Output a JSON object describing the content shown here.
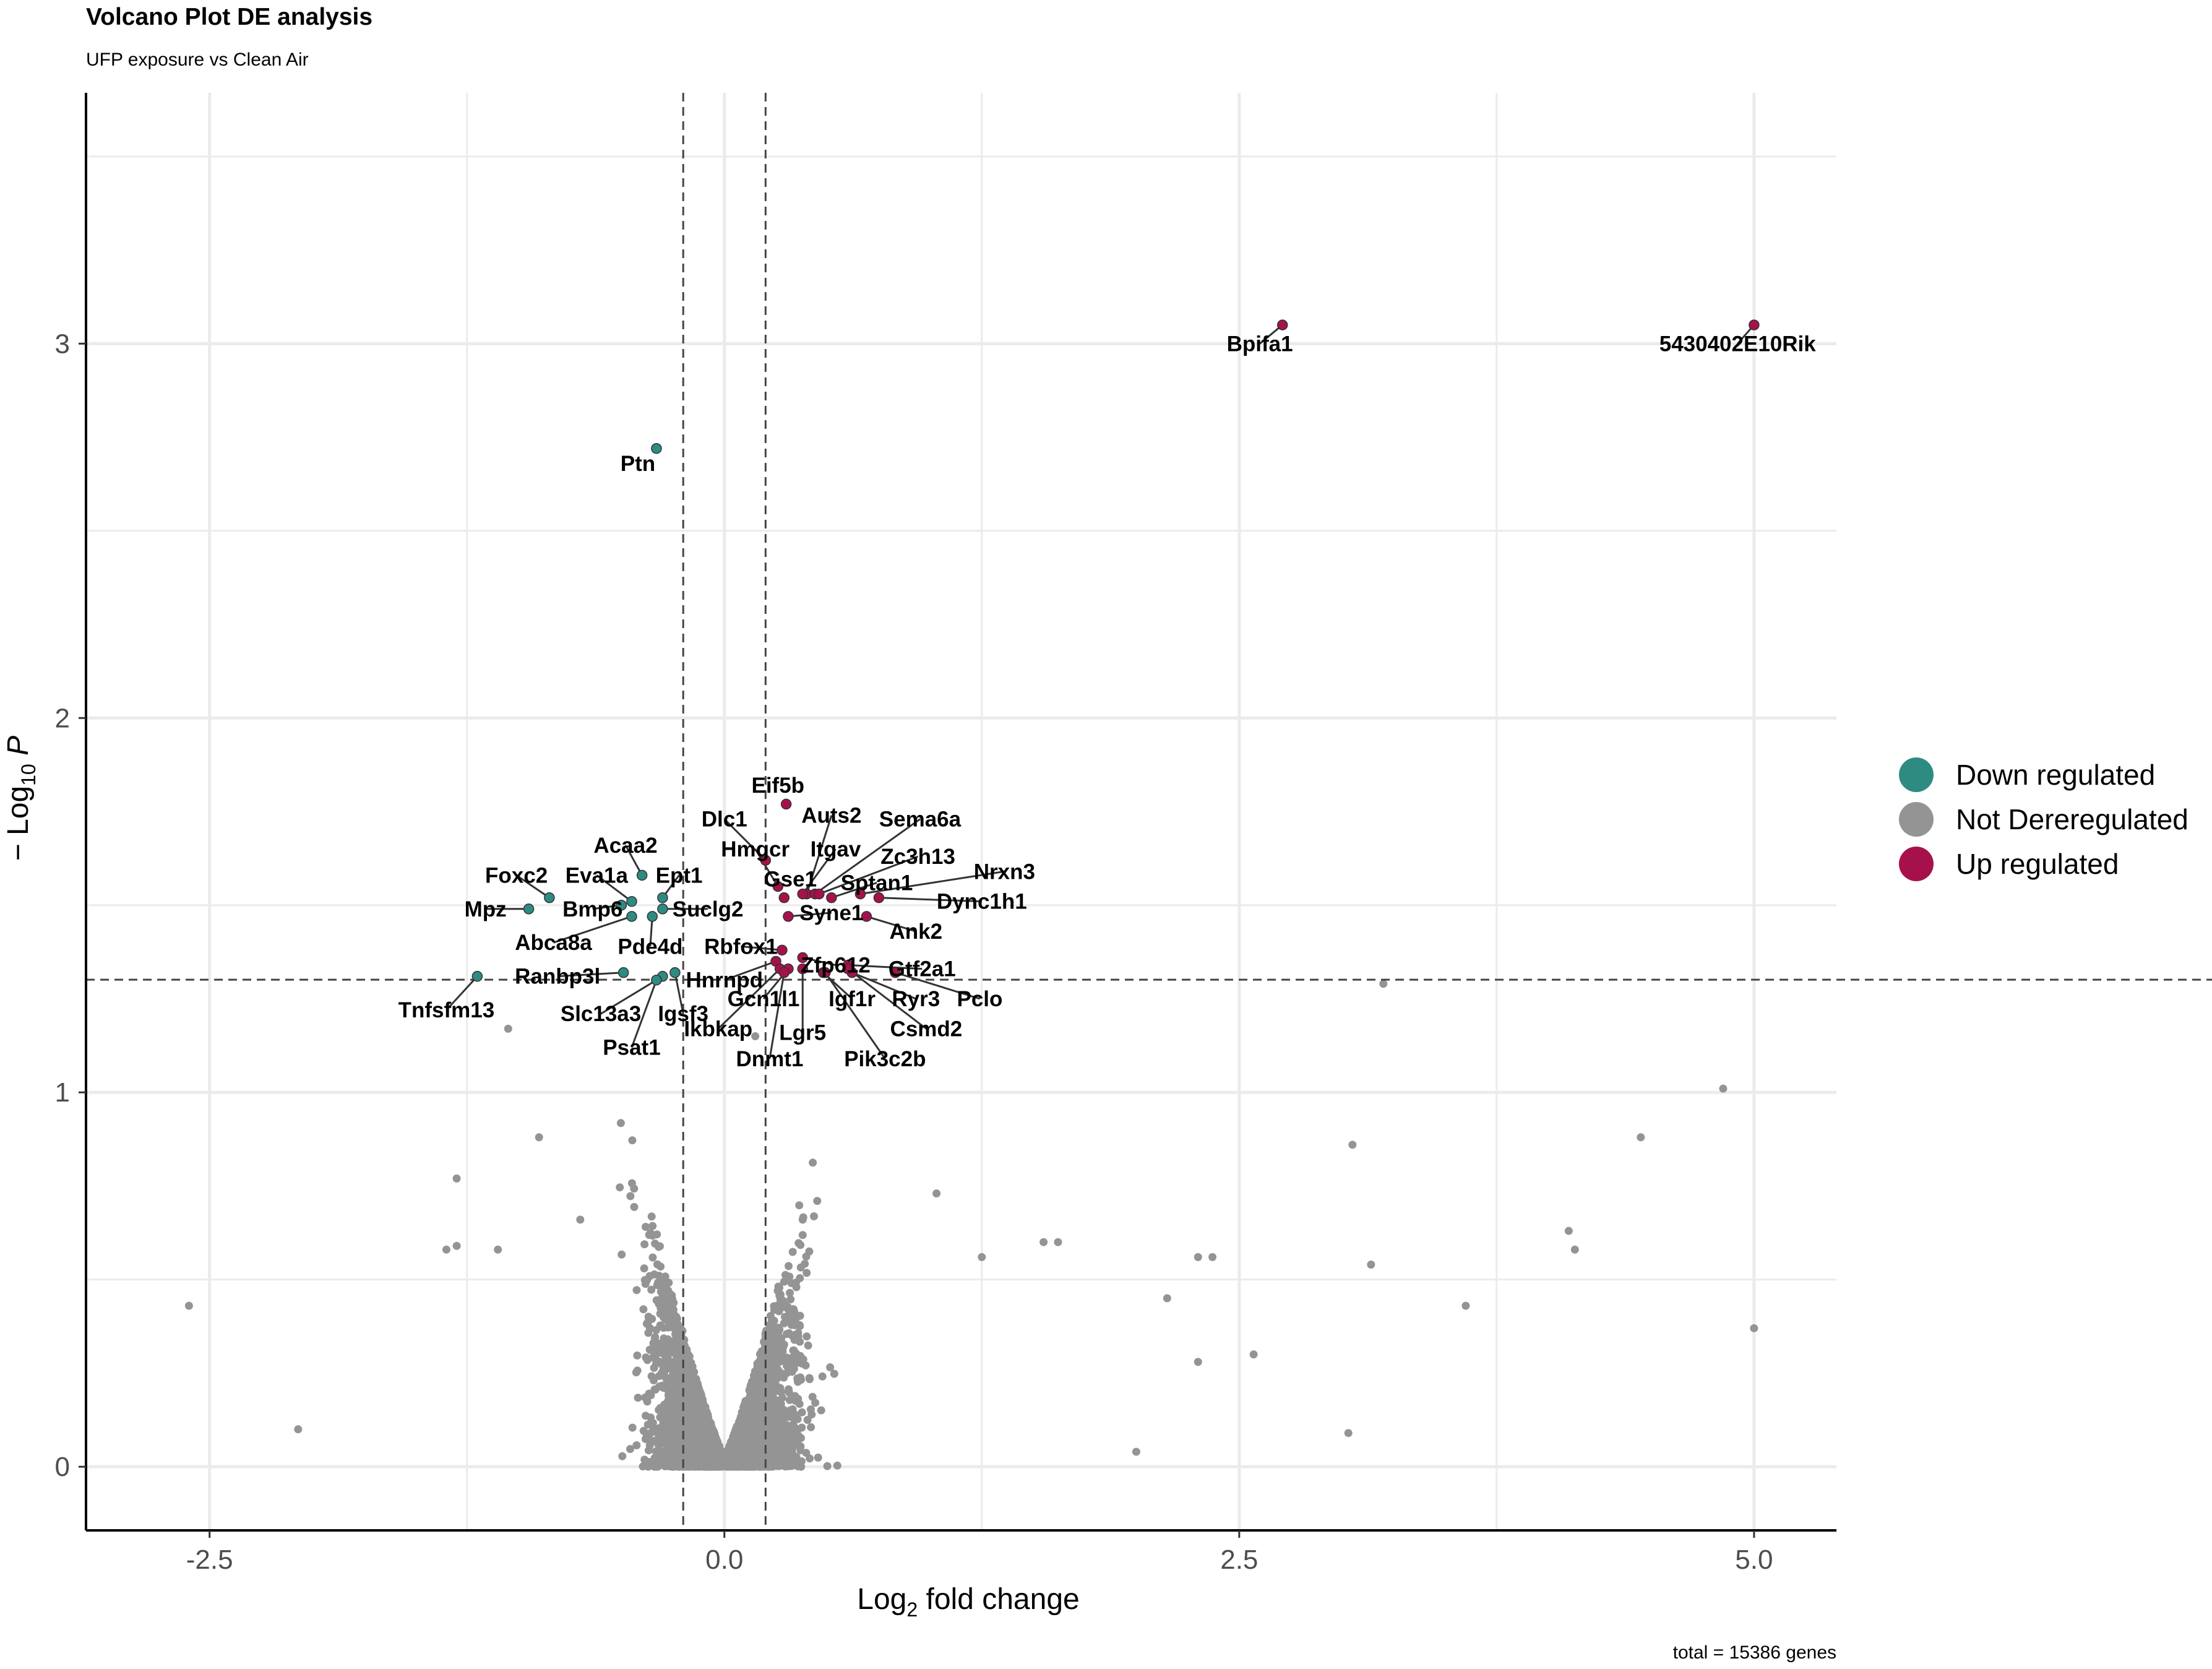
{
  "chart_data": {
    "type": "scatter",
    "title": "Volcano Plot DE analysis",
    "subtitle": "UFP exposure vs Clean Air",
    "xlabel_prefix": "Log",
    "xlabel_sub": "2",
    "xlabel_suffix": " fold change",
    "ylabel_prefix": "− Log",
    "ylabel_sub": "10",
    "ylabel_suffix": " P",
    "caption": "total = 15386 genes",
    "xlim": [
      -3.1,
      5.4
    ],
    "ylim": [
      -0.17,
      3.67
    ],
    "x_ticks": [
      -2.5,
      0.0,
      2.5,
      5.0
    ],
    "x_tick_labels": [
      "-2.5",
      "0.0",
      "2.5",
      "5.0"
    ],
    "y_ticks": [
      0,
      1,
      2,
      3
    ],
    "y_tick_labels": [
      "0",
      "1",
      "2",
      "3"
    ],
    "fc_cutoffs": [
      -0.2,
      0.2
    ],
    "p_cutoff_log10": 1.301,
    "grid": true,
    "legend_position": "right",
    "colors": {
      "down": "#2e8b82",
      "ns": "#949494",
      "up": "#a6114c",
      "grid": "#ebebeb",
      "axis": "#000000"
    },
    "legend": [
      {
        "key": "down",
        "label": "Down regulated"
      },
      {
        "key": "ns",
        "label": "Not Dereregulated"
      },
      {
        "key": "up",
        "label": "Up regulated"
      }
    ],
    "labeled_genes": [
      {
        "gene": "Bpifa1",
        "x": 2.71,
        "y": 3.05,
        "group": "up",
        "lx": 2.6,
        "ly": 3.0
      },
      {
        "gene": "5430402E10Rik",
        "x": 5.0,
        "y": 3.05,
        "group": "up",
        "lx": 4.92,
        "ly": 3.0
      },
      {
        "gene": "Ptn",
        "x": -0.33,
        "y": 2.72,
        "group": "down",
        "lx": -0.42,
        "ly": 2.68
      },
      {
        "gene": "Eif5b",
        "x": 0.3,
        "y": 1.77,
        "group": "up",
        "lx": 0.26,
        "ly": 1.82
      },
      {
        "gene": "Dlc1",
        "x": 0.2,
        "y": 1.62,
        "group": "up",
        "lx": 0.0,
        "ly": 1.73
      },
      {
        "gene": "Auts2",
        "x": 0.4,
        "y": 1.53,
        "group": "up",
        "lx": 0.52,
        "ly": 1.74
      },
      {
        "gene": "Sema6a",
        "x": 0.44,
        "y": 1.53,
        "group": "up",
        "lx": 0.95,
        "ly": 1.73
      },
      {
        "gene": "Hmgcr",
        "x": 0.26,
        "y": 1.55,
        "group": "up",
        "lx": 0.15,
        "ly": 1.65
      },
      {
        "gene": "Itgav",
        "x": 0.38,
        "y": 1.53,
        "group": "up",
        "lx": 0.54,
        "ly": 1.65
      },
      {
        "gene": "Zc3h13",
        "x": 0.46,
        "y": 1.53,
        "group": "up",
        "lx": 0.94,
        "ly": 1.63
      },
      {
        "gene": "Nrxn3",
        "x": 0.66,
        "y": 1.53,
        "group": "up",
        "lx": 1.36,
        "ly": 1.59
      },
      {
        "gene": "Gse1",
        "x": 0.29,
        "y": 1.52,
        "group": "up",
        "lx": 0.32,
        "ly": 1.57
      },
      {
        "gene": "Sptan1",
        "x": 0.52,
        "y": 1.52,
        "group": "up",
        "lx": 0.74,
        "ly": 1.56
      },
      {
        "gene": "Dync1h1",
        "x": 0.75,
        "y": 1.52,
        "group": "up",
        "lx": 1.25,
        "ly": 1.51
      },
      {
        "gene": "Syne1",
        "x": 0.31,
        "y": 1.47,
        "group": "up",
        "lx": 0.52,
        "ly": 1.48
      },
      {
        "gene": "Ank2",
        "x": 0.69,
        "y": 1.47,
        "group": "up",
        "lx": 0.93,
        "ly": 1.43
      },
      {
        "gene": "Rbfox1",
        "x": 0.28,
        "y": 1.38,
        "group": "up",
        "lx": 0.08,
        "ly": 1.39
      },
      {
        "gene": "Zfp612",
        "x": 0.38,
        "y": 1.36,
        "group": "up",
        "lx": 0.54,
        "ly": 1.34
      },
      {
        "gene": "Gtf2a1",
        "x": 0.6,
        "y": 1.34,
        "group": "up",
        "lx": 0.96,
        "ly": 1.33
      },
      {
        "gene": "Hnrnpd",
        "x": 0.25,
        "y": 1.35,
        "group": "up",
        "lx": 0.0,
        "ly": 1.3
      },
      {
        "gene": "Ryr3",
        "x": 0.62,
        "y": 1.32,
        "group": "up",
        "lx": 0.93,
        "ly": 1.25
      },
      {
        "gene": "Pclo",
        "x": 0.83,
        "y": 1.32,
        "group": "up",
        "lx": 1.24,
        "ly": 1.25
      },
      {
        "gene": "Gcn1l1",
        "x": 0.31,
        "y": 1.33,
        "group": "up",
        "lx": 0.19,
        "ly": 1.25
      },
      {
        "gene": "Igf1r",
        "x": 0.48,
        "y": 1.32,
        "group": "up",
        "lx": 0.62,
        "ly": 1.25
      },
      {
        "gene": "Csmd2",
        "x": 0.6,
        "y": 1.33,
        "group": "up",
        "lx": 0.98,
        "ly": 1.17
      },
      {
        "gene": "Lgr5",
        "x": 0.38,
        "y": 1.33,
        "group": "up",
        "lx": 0.38,
        "ly": 1.16
      },
      {
        "gene": "Ikbkap",
        "x": 0.27,
        "y": 1.33,
        "group": "up",
        "lx": -0.03,
        "ly": 1.17
      },
      {
        "gene": "Dnmt1",
        "x": 0.29,
        "y": 1.32,
        "group": "up",
        "lx": 0.22,
        "ly": 1.09
      },
      {
        "gene": "Pik3c2b",
        "x": 0.49,
        "y": 1.32,
        "group": "up",
        "lx": 0.78,
        "ly": 1.09
      },
      {
        "gene": "Acaa2",
        "x": -0.4,
        "y": 1.58,
        "group": "down",
        "lx": -0.48,
        "ly": 1.66
      },
      {
        "gene": "Ept1",
        "x": -0.3,
        "y": 1.52,
        "group": "down",
        "lx": -0.22,
        "ly": 1.58
      },
      {
        "gene": "Foxc2",
        "x": -0.85,
        "y": 1.52,
        "group": "down",
        "lx": -1.01,
        "ly": 1.58
      },
      {
        "gene": "Eva1a",
        "x": -0.45,
        "y": 1.51,
        "group": "down",
        "lx": -0.62,
        "ly": 1.58
      },
      {
        "gene": "Mpz",
        "x": -0.95,
        "y": 1.49,
        "group": "down",
        "lx": -1.16,
        "ly": 1.49
      },
      {
        "gene": "Bmp6",
        "x": -0.5,
        "y": 1.5,
        "group": "down",
        "lx": -0.64,
        "ly": 1.49
      },
      {
        "gene": "Suclg2",
        "x": -0.3,
        "y": 1.49,
        "group": "down",
        "lx": -0.08,
        "ly": 1.49
      },
      {
        "gene": "Abca8a",
        "x": -0.45,
        "y": 1.47,
        "group": "down",
        "lx": -0.83,
        "ly": 1.4
      },
      {
        "gene": "Pde4d",
        "x": -0.35,
        "y": 1.47,
        "group": "down",
        "lx": -0.36,
        "ly": 1.39
      },
      {
        "gene": "Ranbp3l",
        "x": -0.49,
        "y": 1.32,
        "group": "down",
        "lx": -0.81,
        "ly": 1.31
      },
      {
        "gene": "Tnfsfm13",
        "x": -1.2,
        "y": 1.31,
        "group": "down",
        "lx": -1.35,
        "ly": 1.22
      },
      {
        "gene": "Slc13a3",
        "x": -0.3,
        "y": 1.31,
        "group": "down",
        "lx": -0.6,
        "ly": 1.21
      },
      {
        "gene": "Igsf3",
        "x": -0.24,
        "y": 1.32,
        "group": "down",
        "lx": -0.2,
        "ly": 1.21
      },
      {
        "gene": "Psat1",
        "x": -0.33,
        "y": 1.3,
        "group": "down",
        "lx": -0.45,
        "ly": 1.12
      }
    ],
    "ns_outliers": [
      {
        "x": -2.6,
        "y": 0.43
      },
      {
        "x": -2.07,
        "y": 0.1
      },
      {
        "x": -1.3,
        "y": 0.77
      },
      {
        "x": -1.3,
        "y": 0.59
      },
      {
        "x": -1.35,
        "y": 0.58
      },
      {
        "x": -1.1,
        "y": 0.58
      },
      {
        "x": -1.05,
        "y": 1.17
      },
      {
        "x": -0.9,
        "y": 0.88
      },
      {
        "x": -0.7,
        "y": 0.66
      },
      {
        "x": 0.15,
        "y": 1.15
      },
      {
        "x": 1.03,
        "y": 0.73
      },
      {
        "x": 1.25,
        "y": 0.56
      },
      {
        "x": 1.55,
        "y": 0.6
      },
      {
        "x": 1.62,
        "y": 0.6
      },
      {
        "x": 2.15,
        "y": 0.45
      },
      {
        "x": 2.3,
        "y": 0.56
      },
      {
        "x": 2.37,
        "y": 0.56
      },
      {
        "x": 2.57,
        "y": 0.3
      },
      {
        "x": 2.3,
        "y": 0.28
      },
      {
        "x": 2.0,
        "y": 0.04
      },
      {
        "x": 3.03,
        "y": 0.09
      },
      {
        "x": 3.05,
        "y": 0.86
      },
      {
        "x": 3.14,
        "y": 0.54
      },
      {
        "x": 3.6,
        "y": 0.43
      },
      {
        "x": 3.2,
        "y": 1.29
      },
      {
        "x": 4.1,
        "y": 0.63
      },
      {
        "x": 4.13,
        "y": 0.58
      },
      {
        "x": 4.45,
        "y": 0.88
      },
      {
        "x": 4.85,
        "y": 1.01
      },
      {
        "x": 5.0,
        "y": 0.37
      }
    ]
  }
}
